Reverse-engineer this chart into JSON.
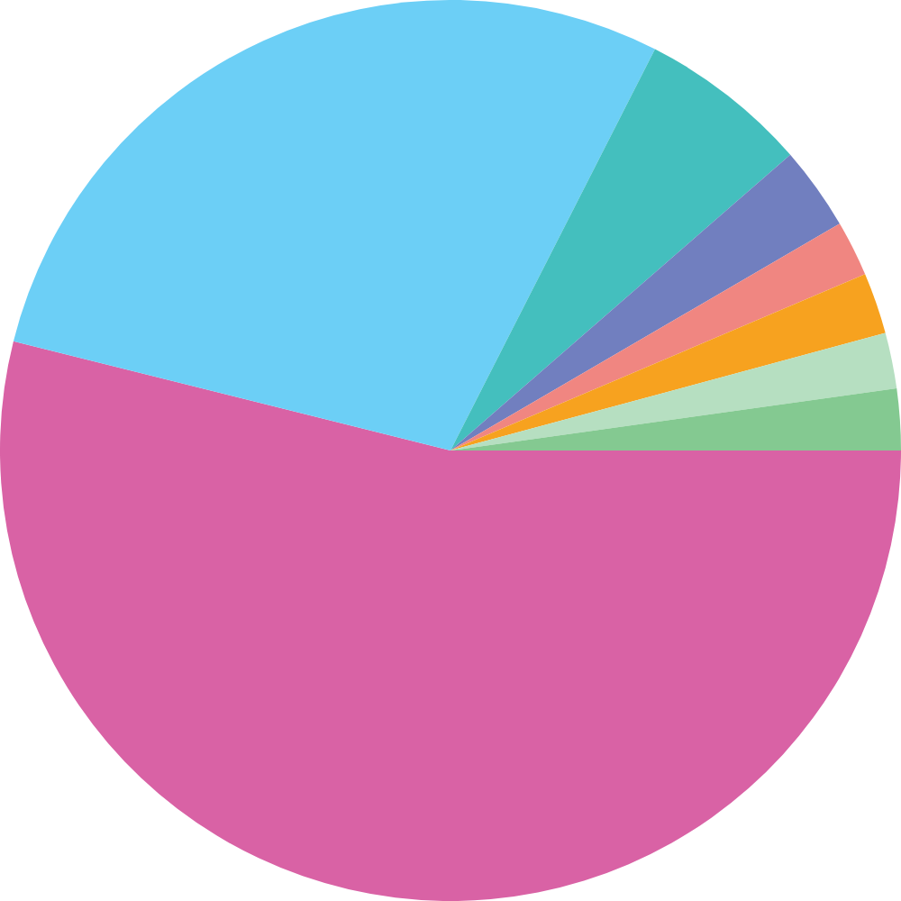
{
  "chart_data": {
    "type": "pie",
    "categories": [
      null,
      null,
      null,
      null,
      null,
      null,
      null,
      null
    ],
    "values": [
      53.9,
      28.6,
      6.1,
      3.0,
      2.0,
      2.2,
      2.0,
      2.2
    ],
    "colors": [
      "#d962a5",
      "#6ccff6",
      "#44bfbe",
      "#717fbf",
      "#f08681",
      "#f7a21f",
      "#b6dfc1",
      "#84c991"
    ]
  }
}
